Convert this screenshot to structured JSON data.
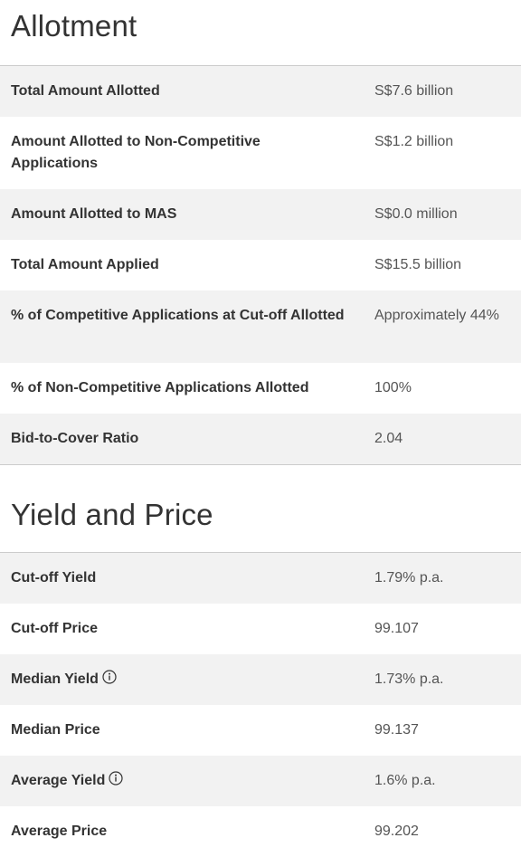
{
  "allotment": {
    "title": "Allotment",
    "rows": [
      {
        "label": "Total Amount Allotted",
        "value": "S$7.6 billion"
      },
      {
        "label": "Amount Allotted to Non-Competitive Applications",
        "value": "S$1.2 billion"
      },
      {
        "label": "Amount Allotted to MAS",
        "value": "S$0.0 million"
      },
      {
        "label": "Total Amount Applied",
        "value": "S$15.5 billion"
      },
      {
        "label": "% of Competitive Applications at Cut-off Allotted",
        "value": "Approximately 44%"
      },
      {
        "label": "% of Non-Competitive Applications Allotted",
        "value": "100%"
      },
      {
        "label": "Bid-to-Cover Ratio",
        "value": "2.04"
      }
    ]
  },
  "yield_price": {
    "title": "Yield and Price",
    "rows": [
      {
        "label": "Cut-off Yield",
        "value": "1.79% p.a."
      },
      {
        "label": "Cut-off Price",
        "value": "99.107"
      },
      {
        "label": "Median Yield",
        "value": "1.73% p.a.",
        "icon": "info-icon"
      },
      {
        "label": "Median Price",
        "value": "99.137"
      },
      {
        "label": "Average Yield",
        "value": "1.6% p.a.",
        "icon": "info-icon"
      },
      {
        "label": "Average Price",
        "value": "99.202"
      }
    ]
  },
  "colors": {
    "row_alt": "#f2f2f2",
    "divider": "#cccccc",
    "text": "#333333",
    "value_text": "#555555"
  }
}
